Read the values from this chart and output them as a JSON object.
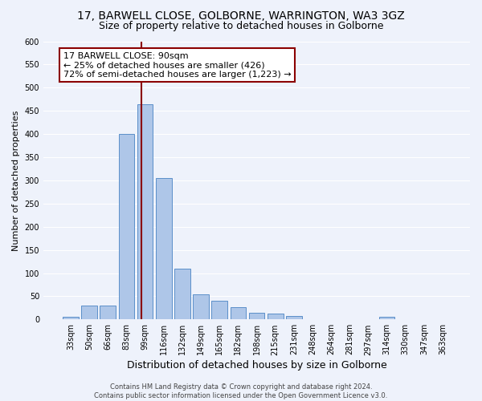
{
  "title": "17, BARWELL CLOSE, GOLBORNE, WARRINGTON, WA3 3GZ",
  "subtitle": "Size of property relative to detached houses in Golborne",
  "xlabel": "Distribution of detached houses by size in Golborne",
  "ylabel": "Number of detached properties",
  "footer_line1": "Contains HM Land Registry data © Crown copyright and database right 2024.",
  "footer_line2": "Contains public sector information licensed under the Open Government Licence v3.0.",
  "bar_labels": [
    "33sqm",
    "50sqm",
    "66sqm",
    "83sqm",
    "99sqm",
    "116sqm",
    "132sqm",
    "149sqm",
    "165sqm",
    "182sqm",
    "198sqm",
    "215sqm",
    "231sqm",
    "248sqm",
    "264sqm",
    "281sqm",
    "297sqm",
    "314sqm",
    "330sqm",
    "347sqm",
    "363sqm"
  ],
  "bar_values": [
    5,
    30,
    30,
    400,
    465,
    305,
    110,
    55,
    40,
    27,
    14,
    12,
    8,
    0,
    0,
    0,
    0,
    5,
    0,
    0,
    0
  ],
  "bar_color": "#aec6e8",
  "bar_edge_color": "#5b8fc9",
  "ylim": [
    0,
    600
  ],
  "yticks": [
    0,
    50,
    100,
    150,
    200,
    250,
    300,
    350,
    400,
    450,
    500,
    550,
    600
  ],
  "vline_color": "#8b0000",
  "annotation_line1": "17 BARWELL CLOSE: 90sqm",
  "annotation_line2": "← 25% of detached houses are smaller (426)",
  "annotation_line3": "72% of semi-detached houses are larger (1,223) →",
  "annotation_box_color": "#8b0000",
  "bg_color": "#eef2fb",
  "grid_color": "#ffffff",
  "title_fontsize": 10,
  "subtitle_fontsize": 9,
  "ylabel_fontsize": 8,
  "xlabel_fontsize": 9,
  "tick_fontsize": 7,
  "annotation_fontsize": 8,
  "footer_fontsize": 6
}
